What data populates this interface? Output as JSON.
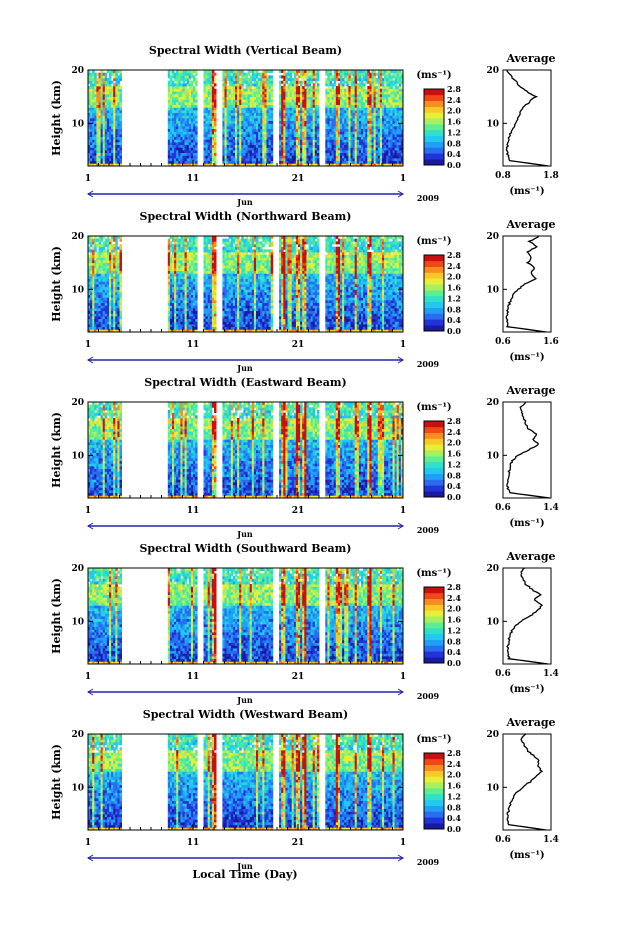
{
  "figure": {
    "x_axis_title": "Local Time (Day)",
    "year_label": "2009",
    "month_label": "Jun"
  },
  "colors": {
    "colormap": [
      "#1a1aa0",
      "#2233d8",
      "#2a6cf0",
      "#1fa0f5",
      "#22c8ee",
      "#30e0c8",
      "#5cee90",
      "#a8f060",
      "#e6ee38",
      "#f8c828",
      "#f88c20",
      "#f04818",
      "#c81010"
    ],
    "background": "#ffffff",
    "profile_line": "#000000"
  },
  "chart_data": [
    {
      "type": "heatmap",
      "title": "Spectral Width (Vertical Beam)",
      "ylabel": "Height (km)",
      "xlabel": "Local Time (Day)",
      "xticks": [
        "1",
        "11",
        "21",
        "1"
      ],
      "yticks": [
        "10",
        "20"
      ],
      "ylim": [
        2,
        20
      ],
      "xlim_days": [
        1,
        31
      ],
      "gap_days": [
        [
          4.3,
          8.5
        ],
        [
          11.4,
          12.0
        ],
        [
          13.2,
          13.7
        ],
        [
          18.6,
          19.1
        ],
        [
          23.1,
          23.6
        ]
      ],
      "colorbar": {
        "unit": "(ms⁻¹)",
        "ticks": [
          "0.0",
          "0.4",
          "0.8",
          "1.2",
          "1.6",
          "2.0",
          "2.4",
          "2.8"
        ],
        "range": [
          0,
          2.8
        ]
      },
      "average_profile": {
        "title": "Average",
        "xlabel": "(ms⁻¹)",
        "xticks": [
          "0.8",
          "1.8"
        ],
        "xlim": [
          0.8,
          1.8
        ],
        "height_km": [
          2,
          3,
          4,
          5,
          6,
          7,
          8,
          9,
          10,
          11,
          12,
          13,
          14,
          15,
          16,
          17,
          18,
          19,
          20
        ],
        "width": [
          1.75,
          0.95,
          0.9,
          0.89,
          0.9,
          0.92,
          0.95,
          1.0,
          1.08,
          1.12,
          1.15,
          1.22,
          1.35,
          1.48,
          1.3,
          1.15,
          1.05,
          0.95,
          0.88
        ]
      }
    },
    {
      "type": "heatmap",
      "title": "Spectral Width (Northward Beam)",
      "ylabel": "Height (km)",
      "xlabel": "Local Time (Day)",
      "xticks": [
        "1",
        "11",
        "21",
        "1"
      ],
      "yticks": [
        "10",
        "20"
      ],
      "ylim": [
        2,
        20
      ],
      "xlim_days": [
        1,
        31
      ],
      "gap_days": [
        [
          4.3,
          8.5
        ],
        [
          11.4,
          12.0
        ],
        [
          13.2,
          13.7
        ],
        [
          18.6,
          19.1
        ],
        [
          23.1,
          23.6
        ]
      ],
      "colorbar": {
        "unit": "(ms⁻¹)",
        "ticks": [
          "0.0",
          "0.4",
          "0.8",
          "1.2",
          "1.6",
          "2.0",
          "2.4",
          "2.8"
        ],
        "range": [
          0,
          2.8
        ]
      },
      "average_profile": {
        "title": "Average",
        "xlabel": "(ms⁻¹)",
        "xticks": [
          "0.6",
          "1.6"
        ],
        "xlim": [
          0.6,
          1.6
        ],
        "height_km": [
          2,
          3,
          4,
          5,
          6,
          7,
          8,
          9,
          10,
          11,
          12,
          13,
          14,
          15,
          16,
          17,
          18,
          19,
          20
        ],
        "width": [
          1.5,
          0.7,
          0.68,
          0.68,
          0.7,
          0.72,
          0.76,
          0.82,
          0.92,
          1.05,
          1.3,
          1.18,
          1.25,
          1.12,
          1.2,
          1.1,
          1.3,
          1.15,
          1.35
        ]
      }
    },
    {
      "type": "heatmap",
      "title": "Spectral Width (Eastward Beam)",
      "ylabel": "Height (km)",
      "xlabel": "Local Time (Day)",
      "xticks": [
        "1",
        "11",
        "21",
        "1"
      ],
      "yticks": [
        "10",
        "20"
      ],
      "ylim": [
        2,
        20
      ],
      "xlim_days": [
        1,
        31
      ],
      "gap_days": [
        [
          4.3,
          8.5
        ],
        [
          11.4,
          12.0
        ],
        [
          13.2,
          13.7
        ],
        [
          18.6,
          19.1
        ],
        [
          23.1,
          23.6
        ]
      ],
      "colorbar": {
        "unit": "(ms⁻¹)",
        "ticks": [
          "0.0",
          "0.4",
          "0.8",
          "1.2",
          "1.6",
          "2.0",
          "2.4",
          "2.8"
        ],
        "range": [
          0,
          2.8
        ]
      },
      "average_profile": {
        "title": "Average",
        "xlabel": "(ms⁻¹)",
        "xticks": [
          "0.6",
          "1.4"
        ],
        "xlim": [
          0.6,
          1.4
        ],
        "height_km": [
          2,
          3,
          4,
          5,
          6,
          7,
          8,
          9,
          10,
          11,
          12,
          13,
          14,
          15,
          16,
          17,
          18,
          19,
          20
        ],
        "width": [
          1.38,
          0.7,
          0.68,
          0.68,
          0.69,
          0.7,
          0.72,
          0.76,
          0.85,
          1.02,
          1.2,
          1.1,
          1.15,
          1.02,
          0.98,
          0.95,
          0.92,
          0.9,
          0.98
        ]
      }
    },
    {
      "type": "heatmap",
      "title": "Spectral Width (Southward Beam)",
      "ylabel": "Height (km)",
      "xlabel": "Local Time (Day)",
      "xticks": [
        "1",
        "11",
        "21",
        "1"
      ],
      "yticks": [
        "10",
        "20"
      ],
      "ylim": [
        2,
        20
      ],
      "xlim_days": [
        1,
        31
      ],
      "gap_days": [
        [
          4.3,
          8.5
        ],
        [
          11.4,
          12.0
        ],
        [
          13.2,
          13.7
        ],
        [
          18.6,
          19.1
        ],
        [
          23.1,
          23.6
        ]
      ],
      "colorbar": {
        "unit": "(ms⁻¹)",
        "ticks": [
          "0.0",
          "0.4",
          "0.8",
          "1.2",
          "1.6",
          "2.0",
          "2.4",
          "2.8"
        ],
        "range": [
          0,
          2.8
        ]
      },
      "average_profile": {
        "title": "Average",
        "xlabel": "(ms⁻¹)",
        "xticks": [
          "0.6",
          "1.4"
        ],
        "xlim": [
          0.6,
          1.4
        ],
        "height_km": [
          2,
          3,
          4,
          5,
          6,
          7,
          8,
          9,
          10,
          11,
          12,
          13,
          14,
          15,
          16,
          17,
          18,
          19,
          20
        ],
        "width": [
          1.35,
          0.7,
          0.68,
          0.68,
          0.69,
          0.71,
          0.74,
          0.8,
          0.9,
          1.05,
          1.18,
          1.25,
          1.12,
          1.22,
          1.08,
          0.98,
          0.92,
          0.9,
          0.96
        ]
      }
    },
    {
      "type": "heatmap",
      "title": "Spectral Width (Westward Beam)",
      "ylabel": "Height (km)",
      "xlabel": "Local Time (Day)",
      "xticks": [
        "1",
        "11",
        "21",
        "1"
      ],
      "yticks": [
        "10",
        "20"
      ],
      "ylim": [
        2,
        20
      ],
      "xlim_days": [
        1,
        31
      ],
      "gap_days": [
        [
          4.3,
          8.5
        ],
        [
          11.4,
          12.0
        ],
        [
          13.2,
          13.7
        ],
        [
          18.6,
          19.1
        ],
        [
          23.1,
          23.6
        ]
      ],
      "colorbar": {
        "unit": "(ms⁻¹)",
        "ticks": [
          "0.0",
          "0.4",
          "0.8",
          "1.2",
          "1.6",
          "2.0",
          "2.4",
          "2.8"
        ],
        "range": [
          0,
          2.8
        ]
      },
      "average_profile": {
        "title": "Average",
        "xlabel": "(ms⁻¹)",
        "xticks": [
          "0.6",
          "1.4"
        ],
        "xlim": [
          0.6,
          1.4
        ],
        "height_km": [
          2,
          3,
          4,
          5,
          6,
          7,
          8,
          9,
          10,
          11,
          12,
          13,
          14,
          15,
          16,
          17,
          18,
          19,
          20
        ],
        "width": [
          1.32,
          0.7,
          0.68,
          0.68,
          0.7,
          0.72,
          0.76,
          0.82,
          0.92,
          1.05,
          1.15,
          1.25,
          1.18,
          1.2,
          1.1,
          1.0,
          0.95,
          0.9,
          0.98
        ]
      }
    }
  ]
}
